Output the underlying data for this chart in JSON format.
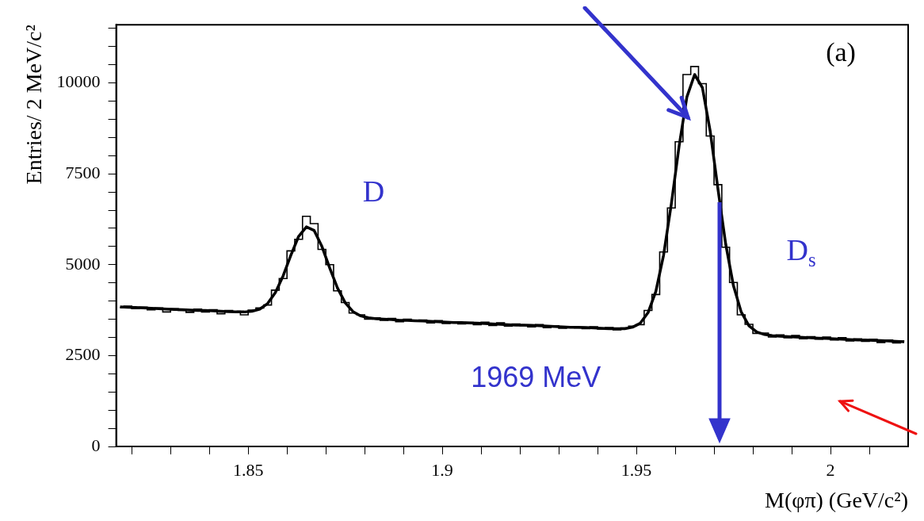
{
  "chart_data": {
    "type": "step",
    "xlabel": "M(φπ) (GeV/c²)",
    "ylabel": "Entries/ 2 MeV/c²",
    "x": [
      1.817,
      1.819,
      1.821,
      1.823,
      1.825,
      1.827,
      1.829,
      1.831,
      1.833,
      1.835,
      1.837,
      1.839,
      1.841,
      1.843,
      1.845,
      1.847,
      1.849,
      1.851,
      1.853,
      1.855,
      1.857,
      1.859,
      1.861,
      1.863,
      1.865,
      1.867,
      1.869,
      1.871,
      1.873,
      1.875,
      1.877,
      1.879,
      1.881,
      1.883,
      1.885,
      1.887,
      1.889,
      1.891,
      1.893,
      1.895,
      1.897,
      1.899,
      1.901,
      1.903,
      1.905,
      1.907,
      1.909,
      1.911,
      1.913,
      1.915,
      1.917,
      1.919,
      1.921,
      1.923,
      1.925,
      1.927,
      1.929,
      1.931,
      1.933,
      1.935,
      1.937,
      1.939,
      1.941,
      1.943,
      1.945,
      1.947,
      1.949,
      1.951,
      1.953,
      1.955,
      1.957,
      1.959,
      1.961,
      1.963,
      1.965,
      1.967,
      1.969,
      1.971,
      1.973,
      1.975,
      1.977,
      1.979,
      1.981,
      1.983,
      1.985,
      1.987,
      1.989,
      1.991,
      1.993,
      1.995,
      1.997,
      1.999,
      2.001,
      2.003,
      2.005,
      2.007,
      2.009,
      2.011,
      2.013,
      2.015,
      2.017,
      2.019
    ],
    "series": [
      {
        "color": "#000000",
        "values": [
          3820,
          3860,
          3790,
          3830,
          3760,
          3810,
          3700,
          3790,
          3740,
          3690,
          3780,
          3700,
          3760,
          3650,
          3740,
          3720,
          3620,
          3750,
          3810,
          3890,
          4300,
          4620,
          5380,
          5700,
          6330,
          6130,
          5420,
          5000,
          4280,
          3960,
          3670,
          3620,
          3500,
          3540,
          3470,
          3520,
          3430,
          3500,
          3440,
          3480,
          3400,
          3460,
          3380,
          3430,
          3370,
          3410,
          3350,
          3420,
          3330,
          3400,
          3310,
          3370,
          3320,
          3290,
          3350,
          3270,
          3320,
          3250,
          3300,
          3260,
          3240,
          3290,
          3230,
          3270,
          3210,
          3260,
          3310,
          3350,
          3740,
          4180,
          5350,
          6560,
          8380,
          10230,
          10450,
          9980,
          8540,
          7200,
          5480,
          4510,
          3620,
          3360,
          3110,
          3120,
          3010,
          3070,
          2990,
          3050,
          2960,
          3020,
          2950,
          3010,
          2930,
          2990,
          2900,
          2960,
          2890,
          2950,
          2860,
          2930,
          2850,
          2900
        ]
      },
      {
        "type": "line",
        "color": "#000000",
        "values": [
          3840,
          3830,
          3820,
          3810,
          3800,
          3790,
          3780,
          3770,
          3760,
          3750,
          3740,
          3740,
          3730,
          3720,
          3710,
          3700,
          3700,
          3720,
          3780,
          3930,
          4230,
          4690,
          5260,
          5780,
          6040,
          5940,
          5500,
          4910,
          4360,
          3950,
          3710,
          3590,
          3540,
          3510,
          3500,
          3490,
          3470,
          3470,
          3460,
          3450,
          3440,
          3430,
          3420,
          3410,
          3410,
          3400,
          3390,
          3380,
          3370,
          3360,
          3350,
          3340,
          3340,
          3330,
          3320,
          3310,
          3300,
          3290,
          3280,
          3280,
          3270,
          3260,
          3250,
          3240,
          3240,
          3240,
          3280,
          3390,
          3680,
          4260,
          5260,
          6670,
          8260,
          9610,
          10230,
          9870,
          8680,
          7090,
          5570,
          4420,
          3700,
          3320,
          3150,
          3080,
          3050,
          3030,
          3020,
          3010,
          3000,
          2990,
          2980,
          2970,
          2960,
          2950,
          2940,
          2930,
          2930,
          2920,
          2910,
          2900,
          2890,
          2880
        ]
      }
    ],
    "xlim": [
      1.816,
      2.02
    ],
    "ylim": [
      0,
      11600
    ],
    "xticks": [
      {
        "value": 1.82,
        "label": null
      },
      {
        "value": 1.83,
        "label": null
      },
      {
        "value": 1.84,
        "label": null
      },
      1.85,
      {
        "value": 1.86,
        "label": null
      },
      {
        "value": 1.87,
        "label": null
      },
      {
        "value": 1.88,
        "label": null
      },
      {
        "value": 1.89,
        "label": null
      },
      1.9,
      {
        "value": 1.91,
        "label": null
      },
      {
        "value": 1.92,
        "label": null
      },
      {
        "value": 1.93,
        "label": null
      },
      {
        "value": 1.94,
        "label": null
      },
      1.95,
      {
        "value": 1.96,
        "label": null
      },
      {
        "value": 1.97,
        "label": null
      },
      {
        "value": 1.98,
        "label": null
      },
      {
        "value": 1.99,
        "label": null
      },
      2,
      {
        "value": 2.01,
        "label": null
      }
    ],
    "yticks": [
      0,
      {
        "value": 500,
        "label": null
      },
      {
        "value": 1000,
        "label": null
      },
      {
        "value": 1500,
        "label": null
      },
      {
        "value": 2000,
        "label": null
      },
      2500,
      {
        "value": 3000,
        "label": null
      },
      {
        "value": 3500,
        "label": null
      },
      {
        "value": 4000,
        "label": null
      },
      {
        "value": 4500,
        "label": null
      },
      5000,
      {
        "value": 5500,
        "label": null
      },
      {
        "value": 6000,
        "label": null
      },
      {
        "value": 6500,
        "label": null
      },
      {
        "value": 7000,
        "label": null
      },
      7500,
      {
        "value": 8000,
        "label": null
      },
      {
        "value": 8500,
        "label": null
      },
      {
        "value": 9000,
        "label": null
      },
      {
        "value": 9500,
        "label": null
      },
      10000,
      {
        "value": 10500,
        "label": null
      },
      {
        "value": 11000,
        "label": null
      },
      {
        "value": 11500,
        "label": null
      }
    ],
    "annotations": [
      "(a)",
      "D",
      "D$_{s}$",
      "1969 MeV"
    ],
    "grid": false,
    "legend": false,
    "marker": "none",
    "line_style": "solid"
  }
}
